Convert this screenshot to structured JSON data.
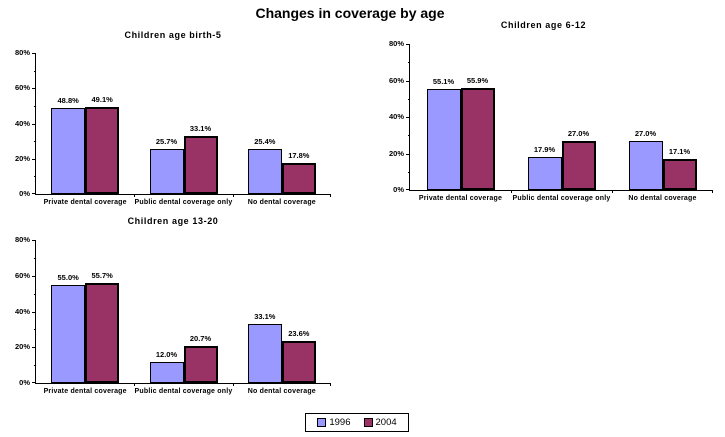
{
  "page_title": "Changes in coverage by age",
  "colors": {
    "series_1996": "#9999ff",
    "series_2004": "#993366",
    "bar_border": "#000000",
    "axis": "#000000",
    "background": "#ffffff",
    "text": "#000000"
  },
  "legend": {
    "position": "bottom-center",
    "items": [
      {
        "label": "1996",
        "color": "#9999ff"
      },
      {
        "label": "2004",
        "color": "#993366"
      }
    ]
  },
  "chart_data": [
    {
      "type": "bar",
      "title": "Children age birth-5",
      "categories": [
        "Private dental coverage",
        "Public dental coverage only",
        "No dental coverage"
      ],
      "series": [
        {
          "name": "1996",
          "color": "#9999ff",
          "values": [
            48.8,
            25.7,
            25.4
          ]
        },
        {
          "name": "2004",
          "color": "#993366",
          "values": [
            49.1,
            33.1,
            17.8
          ]
        }
      ],
      "value_labels": [
        [
          "48.8%",
          "25.7%",
          "25.4%"
        ],
        [
          "49.1%",
          "33.1%",
          "17.8%"
        ]
      ],
      "xlabel": "",
      "ylabel": "",
      "ylim": [
        0,
        80
      ],
      "ytick_step": 20,
      "ytick_minor_step": 10,
      "ytick_labels": [
        "0%",
        "20%",
        "40%",
        "60%",
        "80%"
      ],
      "grid": false,
      "legend_position": "none"
    },
    {
      "type": "bar",
      "title": "Children age 6-12",
      "categories": [
        "Private dental coverage",
        "Public dental coverage only",
        "No dental coverage"
      ],
      "series": [
        {
          "name": "1996",
          "color": "#9999ff",
          "values": [
            55.1,
            17.9,
            27.0
          ]
        },
        {
          "name": "2004",
          "color": "#993366",
          "values": [
            55.9,
            27.0,
            17.1
          ]
        }
      ],
      "value_labels": [
        [
          "55.1%",
          "17.9%",
          "27.0%"
        ],
        [
          "55.9%",
          "27.0%",
          "17.1%"
        ]
      ],
      "xlabel": "",
      "ylabel": "",
      "ylim": [
        0,
        80
      ],
      "ytick_step": 20,
      "ytick_minor_step": 10,
      "ytick_labels": [
        "0%",
        "20%",
        "40%",
        "60%",
        "80%"
      ],
      "grid": false,
      "legend_position": "none"
    },
    {
      "type": "bar",
      "title": "Children age 13-20",
      "categories": [
        "Private dental coverage",
        "Public dental coverage only",
        "No dental coverage"
      ],
      "series": [
        {
          "name": "1996",
          "color": "#9999ff",
          "values": [
            55.0,
            12.0,
            33.1
          ]
        },
        {
          "name": "2004",
          "color": "#993366",
          "values": [
            55.7,
            20.7,
            23.6
          ]
        }
      ],
      "value_labels": [
        [
          "55.0%",
          "12.0%",
          "33.1%"
        ],
        [
          "55.7%",
          "20.7%",
          "23.6%"
        ]
      ],
      "xlabel": "",
      "ylabel": "",
      "ylim": [
        0,
        80
      ],
      "ytick_step": 20,
      "ytick_minor_step": 10,
      "ytick_labels": [
        "0%",
        "20%",
        "40%",
        "60%",
        "80%"
      ],
      "grid": false,
      "legend_position": "none"
    }
  ]
}
